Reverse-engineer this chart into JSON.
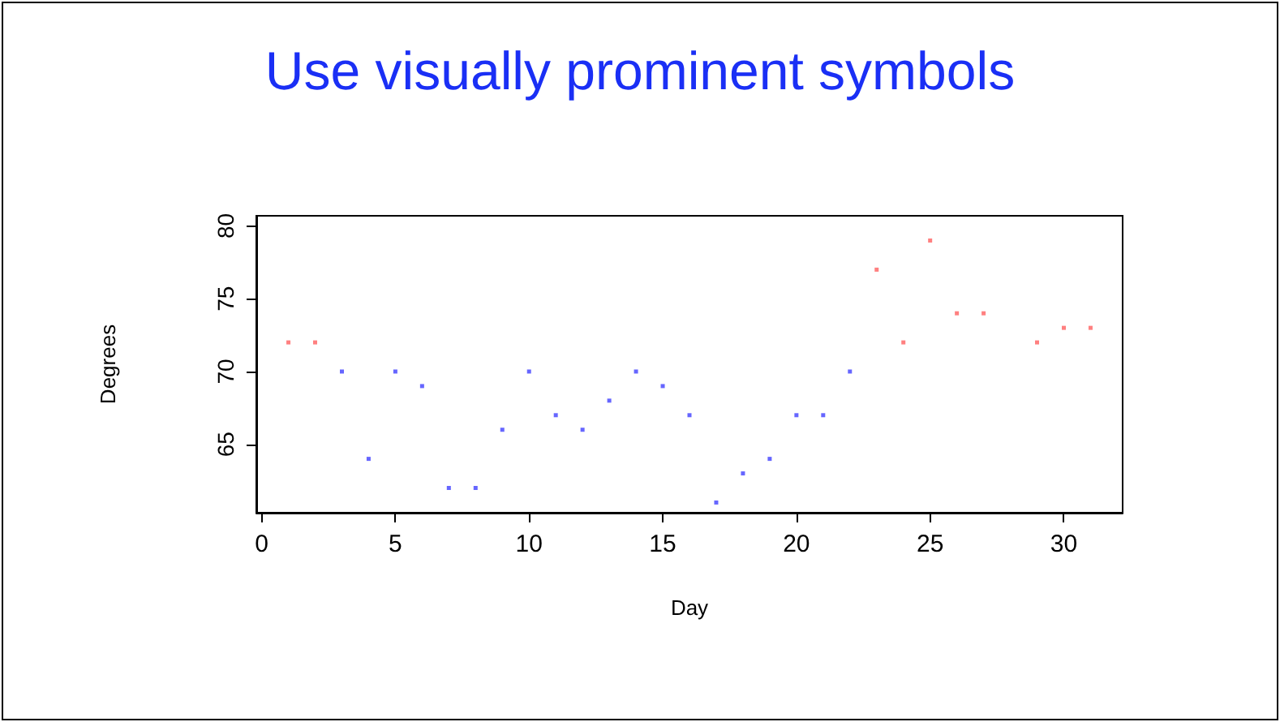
{
  "chart_data": {
    "type": "scatter",
    "title": "Use visually prominent symbols",
    "xlabel": "Day",
    "ylabel": "Degrees",
    "xlim": [
      -0.2,
      32.2
    ],
    "ylim": [
      60.3,
      80.7
    ],
    "xticks": [
      0,
      5,
      10,
      15,
      20,
      25,
      30
    ],
    "yticks": [
      65,
      70,
      75,
      80
    ],
    "marker": "square",
    "series": [
      {
        "color": "#ff6060",
        "x": [
          1,
          2,
          23,
          24,
          25,
          26,
          27,
          29,
          30,
          31
        ],
        "values": [
          72,
          72,
          77,
          72,
          79,
          74,
          74,
          72,
          73,
          73
        ]
      },
      {
        "color": "#4040ff",
        "x": [
          3,
          4,
          5,
          6,
          7,
          8,
          9,
          10,
          11,
          12,
          13,
          14,
          15,
          16,
          17,
          18,
          19,
          20,
          21,
          22
        ],
        "values": [
          70,
          64,
          70,
          69,
          62,
          62,
          66,
          70,
          67,
          66,
          68,
          70,
          69,
          67,
          61,
          63,
          64,
          67,
          67,
          70
        ]
      }
    ]
  }
}
